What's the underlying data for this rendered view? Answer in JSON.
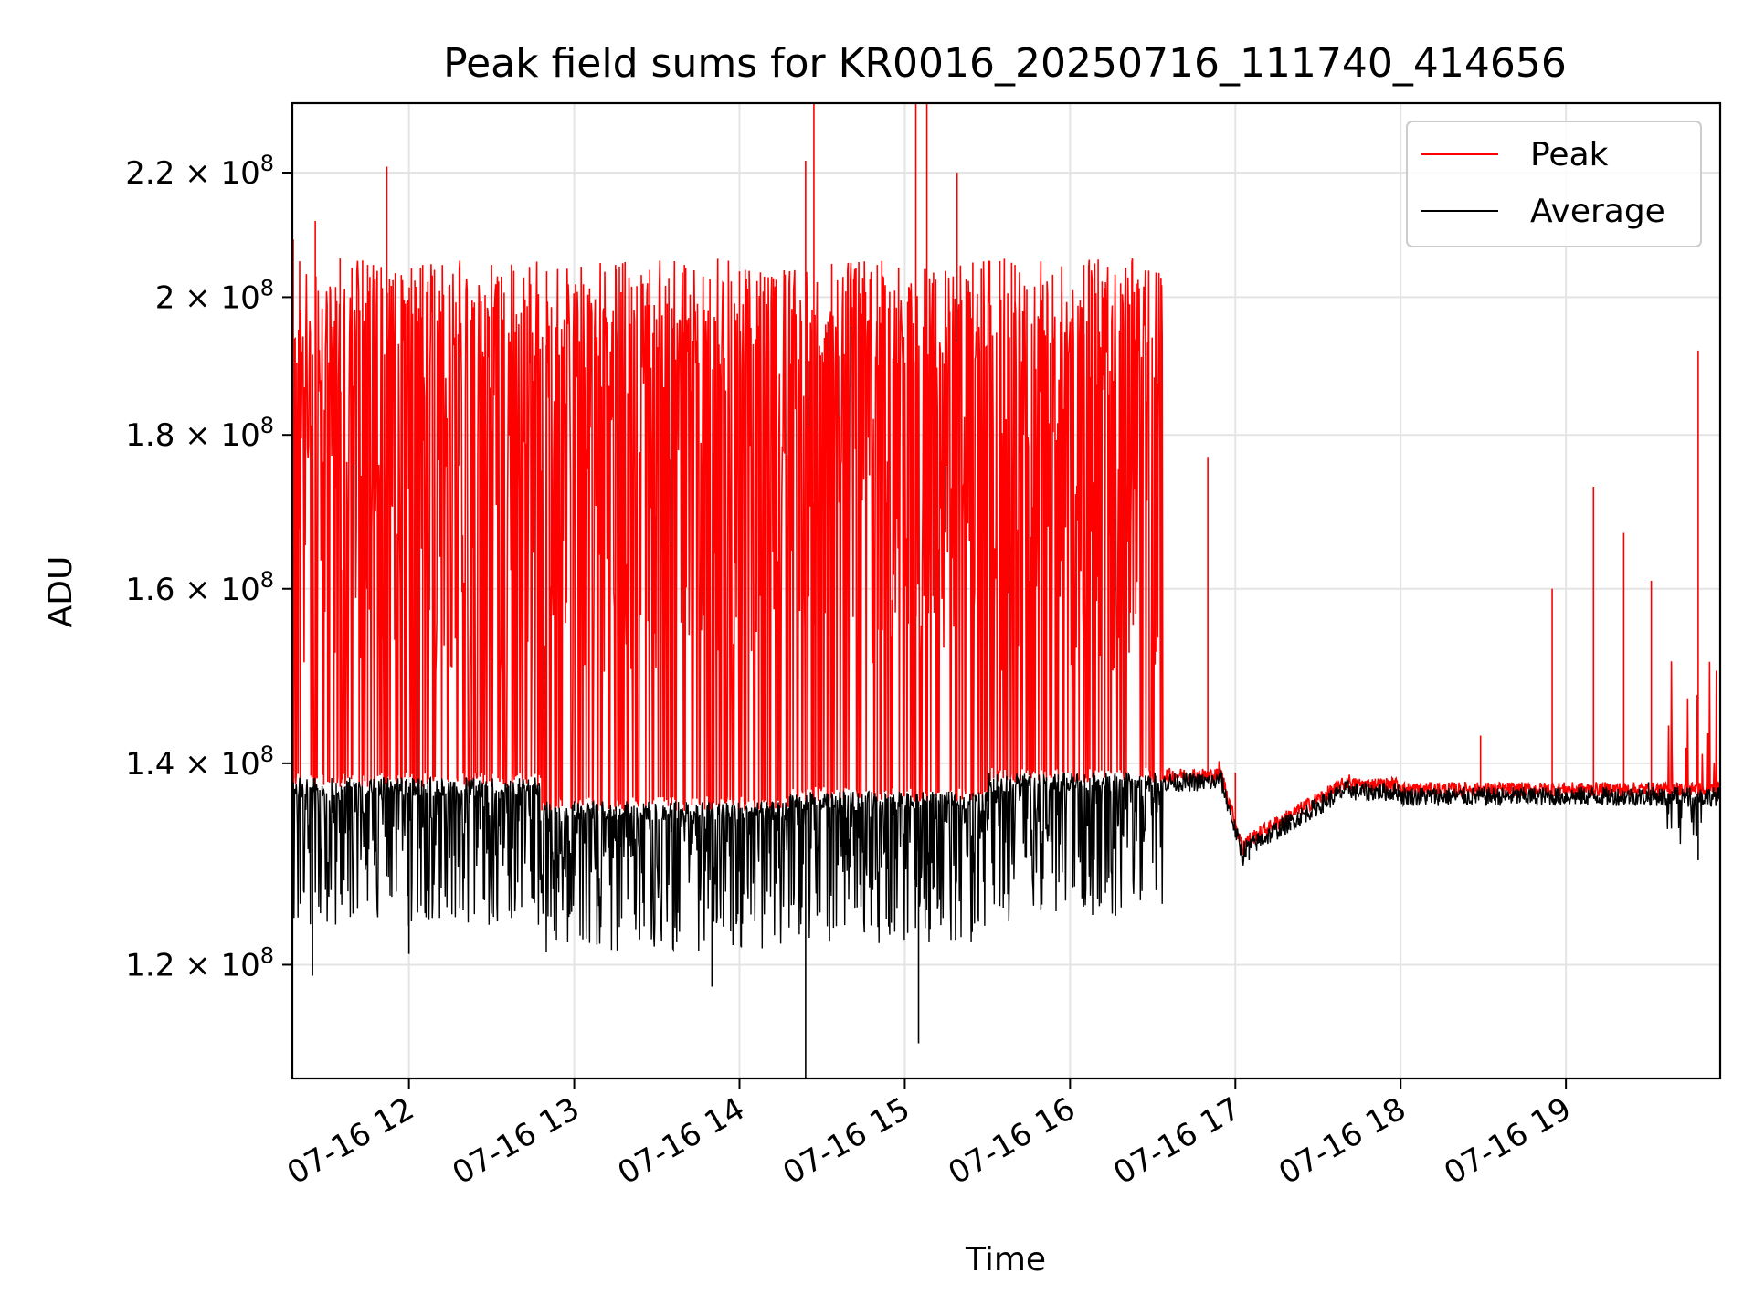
{
  "chart_data": {
    "type": "line",
    "title": "Peak field sums for KR0016_20250716_111740_414656",
    "xlabel": "Time",
    "ylabel": "ADU",
    "y_scale": "log",
    "ylim": [
      110000000,
      232000000
    ],
    "xlim": [
      "2025-07-16T11:17:40",
      "2025-07-16T19:56:00"
    ],
    "grid": true,
    "legend_position": "top-right",
    "x_ticks": [
      {
        "value": "2025-07-16T12:00",
        "label": "07-16 12"
      },
      {
        "value": "2025-07-16T13:00",
        "label": "07-16 13"
      },
      {
        "value": "2025-07-16T14:00",
        "label": "07-16 14"
      },
      {
        "value": "2025-07-16T15:00",
        "label": "07-16 15"
      },
      {
        "value": "2025-07-16T16:00",
        "label": "07-16 16"
      },
      {
        "value": "2025-07-16T17:00",
        "label": "07-16 17"
      },
      {
        "value": "2025-07-16T18:00",
        "label": "07-16 18"
      },
      {
        "value": "2025-07-16T19:00",
        "label": "07-16 19"
      }
    ],
    "y_ticks": [
      {
        "value": 120000000,
        "mantissa": "1.2",
        "exp": "8"
      },
      {
        "value": 140000000,
        "mantissa": "1.4",
        "exp": "8"
      },
      {
        "value": 160000000,
        "mantissa": "1.6",
        "exp": "8"
      },
      {
        "value": 180000000,
        "mantissa": "1.8",
        "exp": "8"
      },
      {
        "value": 200000000,
        "mantissa": "2",
        "exp": "8"
      },
      {
        "value": 220000000,
        "mantissa": "2.2",
        "exp": "8"
      }
    ],
    "series": [
      {
        "name": "Peak",
        "color": "#ff0000",
        "points": [
          [
            "2025-07-16T11:18",
            209000000
          ],
          [
            "2025-07-16T11:26",
            212000000
          ],
          [
            "2025-07-16T11:35",
            206000000
          ],
          [
            "2025-07-16T11:45",
            205000000
          ],
          [
            "2025-07-16T11:52",
            221000000
          ],
          [
            "2025-07-16T12:05",
            205000000
          ],
          [
            "2025-07-16T12:30",
            205000000
          ],
          [
            "2025-07-16T12:50",
            204000000
          ],
          [
            "2025-07-16T13:15",
            205000000
          ],
          [
            "2025-07-16T13:40",
            205000000
          ],
          [
            "2025-07-16T14:00",
            204000000
          ],
          [
            "2025-07-16T14:24",
            222000000
          ],
          [
            "2025-07-16T14:27",
            235000000
          ],
          [
            "2025-07-16T14:50",
            205000000
          ],
          [
            "2025-07-16T15:04",
            234000000
          ],
          [
            "2025-07-16T15:08",
            234000000
          ],
          [
            "2025-07-16T15:19",
            220000000
          ],
          [
            "2025-07-16T15:40",
            205000000
          ],
          [
            "2025-07-16T16:05",
            205000000
          ],
          [
            "2025-07-16T16:33",
            203000000
          ],
          [
            "2025-07-16T16:50",
            177000000
          ],
          [
            "2025-07-16T17:00",
            139000000
          ],
          [
            "2025-07-16T18:29",
            143000000
          ],
          [
            "2025-07-16T18:55",
            160000000
          ],
          [
            "2025-07-16T19:10",
            173000000
          ],
          [
            "2025-07-16T19:21",
            167000000
          ],
          [
            "2025-07-16T19:31",
            161000000
          ],
          [
            "2025-07-16T19:48",
            192000000
          ],
          [
            "2025-07-16T19:55",
            136000000
          ]
        ]
      },
      {
        "name": "Average",
        "color": "#000000",
        "points": [
          [
            "2025-07-16T11:18",
            137000000
          ],
          [
            "2025-07-16T11:25",
            119000000
          ],
          [
            "2025-07-16T11:40",
            138000000
          ],
          [
            "2025-07-16T12:00",
            121000000
          ],
          [
            "2025-07-16T12:30",
            138000000
          ],
          [
            "2025-07-16T13:00",
            136000000
          ],
          [
            "2025-07-16T13:30",
            135000000
          ],
          [
            "2025-07-16T13:50",
            118000000
          ],
          [
            "2025-07-16T14:24",
            110000000
          ],
          [
            "2025-07-16T14:50",
            136000000
          ],
          [
            "2025-07-16T15:05",
            113000000
          ],
          [
            "2025-07-16T15:30",
            137000000
          ],
          [
            "2025-07-16T16:00",
            138000000
          ],
          [
            "2025-07-16T16:33",
            137000000
          ],
          [
            "2025-07-16T16:55",
            139000000
          ],
          [
            "2025-07-16T17:05",
            130000000
          ],
          [
            "2025-07-16T17:20",
            133000000
          ],
          [
            "2025-07-16T17:40",
            138000000
          ],
          [
            "2025-07-16T18:00",
            136000000
          ],
          [
            "2025-07-16T18:30",
            137000000
          ],
          [
            "2025-07-16T19:00",
            137000000
          ],
          [
            "2025-07-16T19:30",
            138000000
          ],
          [
            "2025-07-16T19:48",
            130000000
          ],
          [
            "2025-07-16T19:55",
            136000000
          ]
        ]
      }
    ]
  }
}
